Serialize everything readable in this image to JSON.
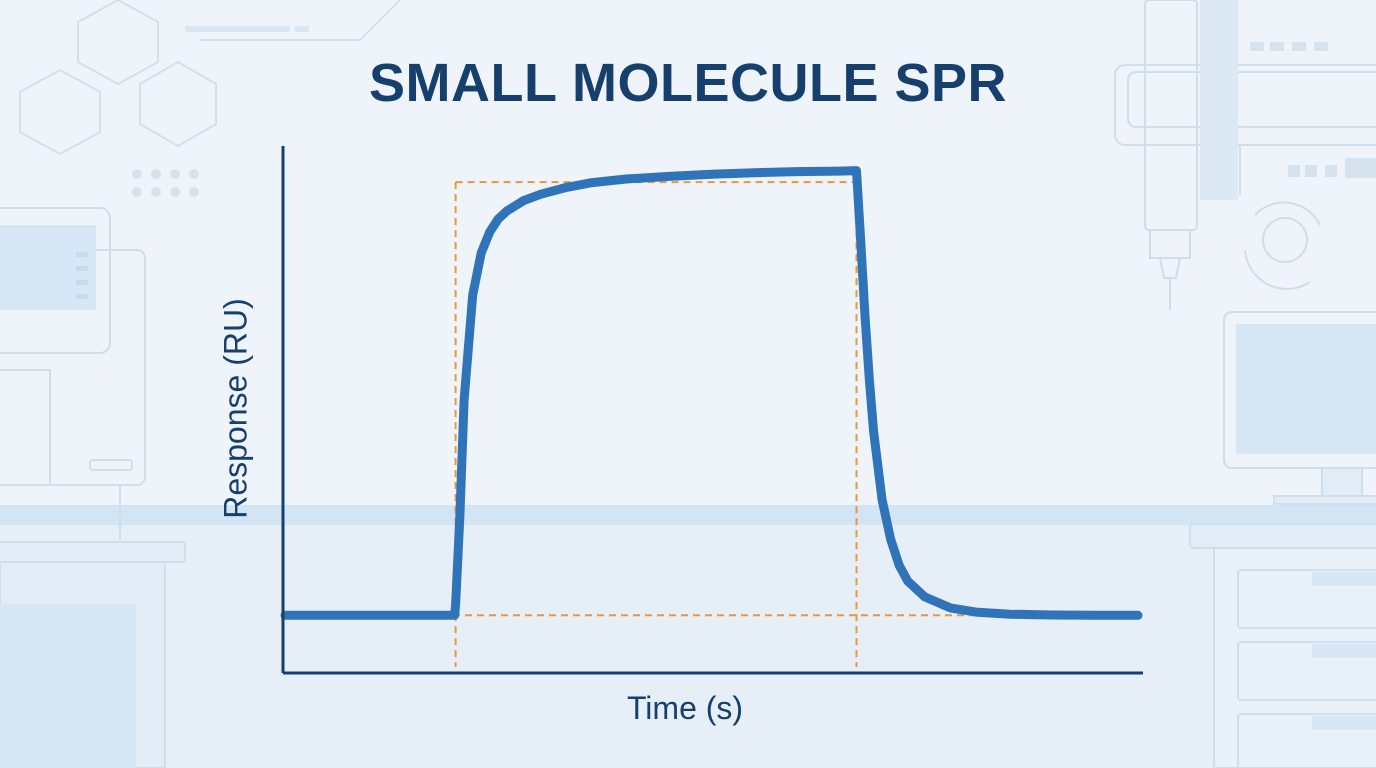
{
  "title": "SMALL MOLECULE SPR",
  "colors": {
    "title": "#173f6e",
    "axis": "#173f6e",
    "curve": "#2f74b8",
    "guide": "#e8973c",
    "background": "#eef4fa"
  },
  "chart_data": {
    "type": "line",
    "title": "SMALL MOLECULE SPR",
    "xlabel": "Time (s)",
    "ylabel": "Response (RU)",
    "xlim": [
      0,
      100
    ],
    "ylim": [
      0,
      100
    ],
    "grid": false,
    "legend": "none",
    "tick_labels": false,
    "injection_start": 20,
    "injection_end": 67,
    "series": [
      {
        "x": [
          0,
          19.9,
          20,
          20.5,
          21,
          22,
          23,
          24,
          25,
          26,
          28,
          30,
          33,
          36,
          40,
          45,
          50,
          55,
          60,
          65,
          67,
          67.5,
          68,
          68.5,
          69,
          70,
          71,
          72,
          73,
          75,
          78,
          81,
          85,
          90,
          95,
          100
        ],
        "values": [
          11,
          11,
          13,
          30,
          52,
          72,
          80,
          84,
          86.5,
          88,
          90,
          91.2,
          92.5,
          93.4,
          94.1,
          94.6,
          95,
          95.3,
          95.5,
          95.6,
          95.7,
          82,
          68,
          56,
          46,
          33,
          25.5,
          20.5,
          17.5,
          14.5,
          12.4,
          11.6,
          11.2,
          11.05,
          11,
          11
        ]
      }
    ],
    "guides": {
      "baseline": 11,
      "plateau": 93.5
    }
  }
}
